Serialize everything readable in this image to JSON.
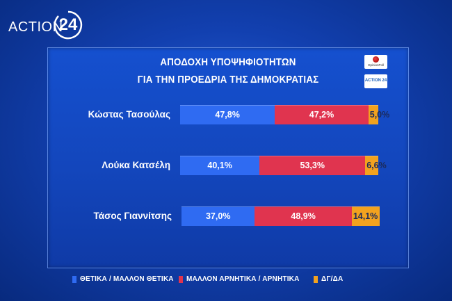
{
  "logo": {
    "text": "ACTION",
    "number": "24"
  },
  "badges": {
    "pollster": "OpinionPoll",
    "channel": "ACTION 24"
  },
  "colors": {
    "positive": "#2f6bf2",
    "negative": "#e0344f",
    "neutral": "#f2a21f"
  },
  "chart_data": {
    "type": "bar",
    "stacked": true,
    "orientation": "horizontal",
    "title": "ΑΠΟΔΟΧΗ ΥΠΟΨΗΦΙΟΤΗΤΩΝ",
    "subtitle": "ΓΙΑ ΤΗΝ ΠΡΟΕΔΡΙΑ ΤΗΣ ΔΗΜΟΚΡΑΤΙΑΣ",
    "categories": [
      "Κώστας Τασούλας",
      "Λούκα Κατσέλη",
      "Τάσος Γιαννίτσης"
    ],
    "series": [
      {
        "name": "ΘΕΤΙΚΑ / ΜΑΛΛΟΝ ΘΕΤΙΚΑ",
        "values": [
          47.8,
          40.1,
          37.0
        ],
        "labels": [
          "47,8%",
          "40,1%",
          "37,0%"
        ]
      },
      {
        "name": "ΜΑΛΛΟΝ ΑΡΝΗΤΙΚΑ / ΑΡΝΗΤΙΚΑ",
        "values": [
          47.2,
          53.3,
          48.9
        ],
        "labels": [
          "47,2%",
          "53,3%",
          "48,9%"
        ]
      },
      {
        "name": "ΔΓ/ΔΑ",
        "values": [
          5.0,
          6.6,
          14.1
        ],
        "labels": [
          "5,0%",
          "6,6%",
          "14,1%"
        ]
      }
    ],
    "xlim": [
      0,
      100
    ],
    "grid": false,
    "legend_position": "bottom"
  }
}
